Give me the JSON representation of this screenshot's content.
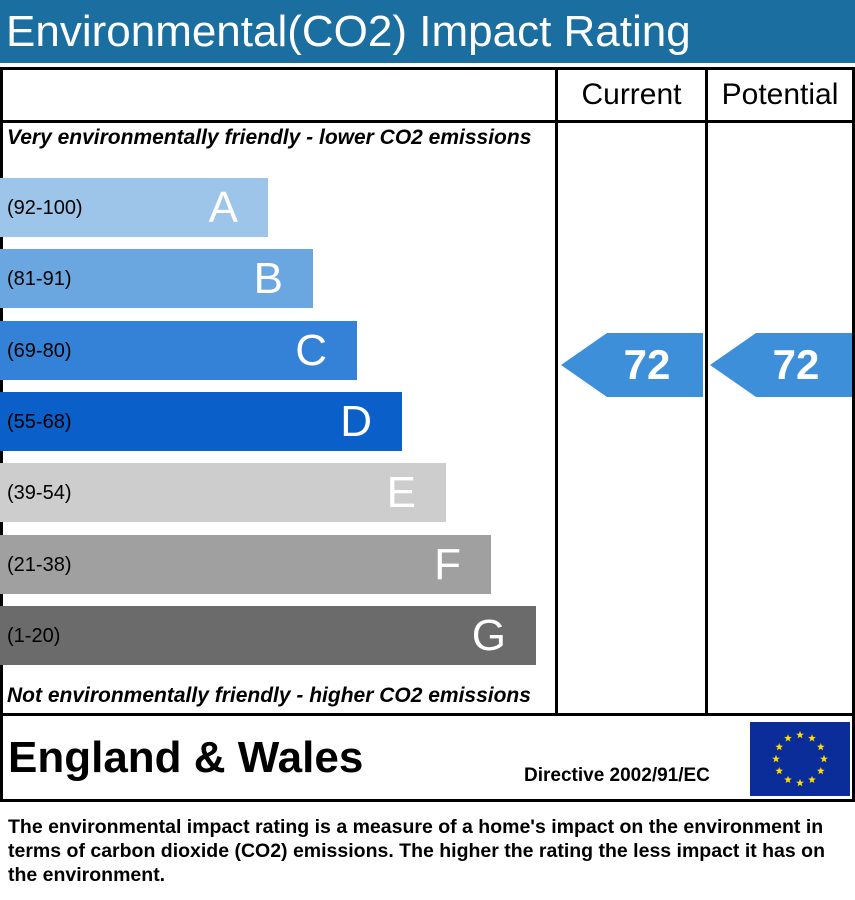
{
  "title": "Environmental(CO2) Impact Rating",
  "columns": {
    "current": "Current",
    "potential": "Potential"
  },
  "captions": {
    "top": "Very environmentally friendly - lower CO2 emissions",
    "bottom": "Not environmentally friendly - higher CO2 emissions"
  },
  "chart_data": {
    "type": "bar",
    "bands": [
      {
        "letter": "A",
        "range": "(92-100)",
        "color": "#9dc5ea"
      },
      {
        "letter": "B",
        "range": "(81-91)",
        "color": "#6aa7e0"
      },
      {
        "letter": "C",
        "range": "(69-80)",
        "color": "#3382d8"
      },
      {
        "letter": "D",
        "range": "(55-68)",
        "color": "#0a5fc8"
      },
      {
        "letter": "E",
        "range": "(39-54)",
        "color": "#cdcdcd"
      },
      {
        "letter": "F",
        "range": "(21-38)",
        "color": "#a0a0a0"
      },
      {
        "letter": "G",
        "range": "(1-20)",
        "color": "#6b6b6b"
      }
    ],
    "current": {
      "value": "72",
      "band": "C",
      "color": "#3d8fda"
    },
    "potential": {
      "value": "72",
      "band": "C",
      "color": "#3d8fda"
    }
  },
  "region": "England & Wales",
  "directive": "Directive 2002/91/EC",
  "footer": "The environmental impact rating is a measure of a home's impact on the environment in terms of carbon dioxide (CO2) emissions. The higher the rating the less impact it has on the environment."
}
